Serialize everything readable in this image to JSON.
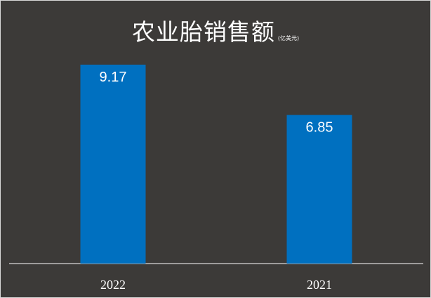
{
  "chart_data": {
    "type": "bar",
    "title": "农业胎销售额",
    "unit": "(亿美元)",
    "categories": [
      "2022",
      "2021"
    ],
    "values": [
      9.17,
      6.85
    ],
    "value_labels": [
      "9.17",
      "6.85"
    ],
    "xlabel": "",
    "ylabel": "",
    "ylim": [
      0,
      9.17
    ],
    "grid": false,
    "legend": "none",
    "colors": {
      "background": "#3c3a38",
      "bar": "#0070c0",
      "text": "#ffffff",
      "axis": "#ffffff"
    }
  }
}
